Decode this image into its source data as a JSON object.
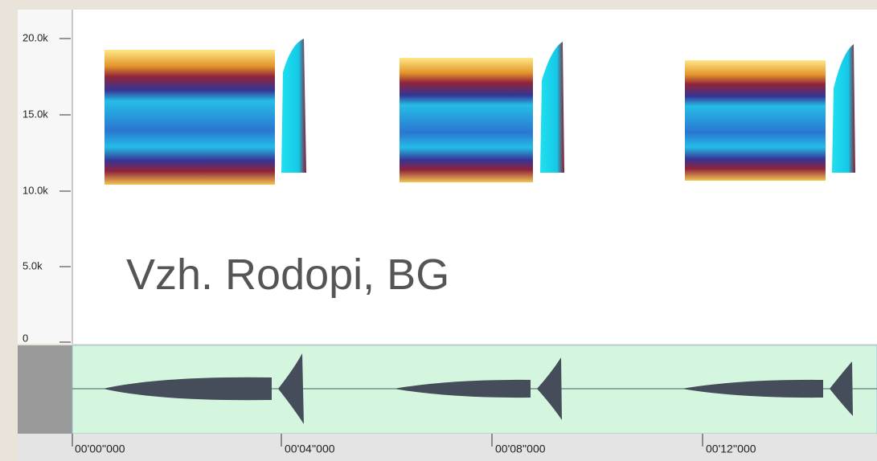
{
  "frequency_axis": {
    "labels": [
      "20.0k",
      "15.0k",
      "10.0k",
      "5.0k",
      "0"
    ]
  },
  "time_axis": {
    "labels": [
      "00'00''000",
      "00'04''000",
      "00'08''000",
      "00'12''000"
    ]
  },
  "overlay": {
    "caption": "Vzh. Rodopi, BG"
  }
}
